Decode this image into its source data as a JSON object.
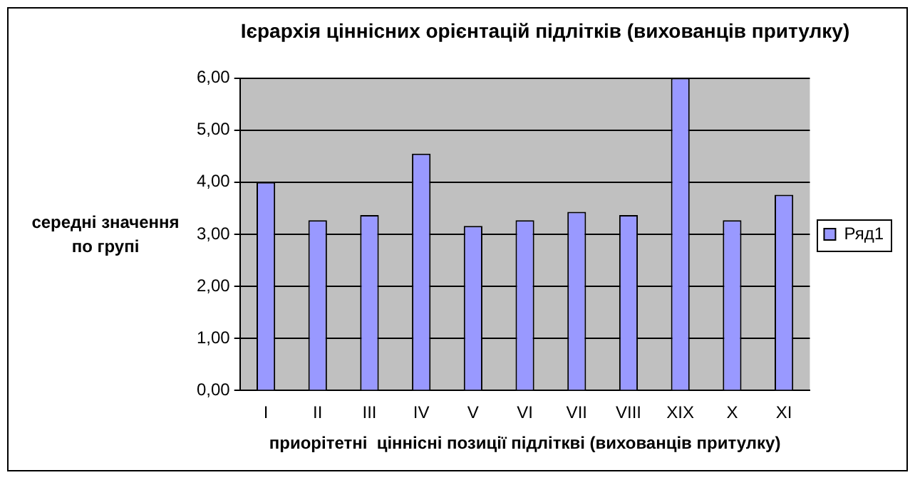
{
  "chart_data": {
    "type": "bar",
    "title": "Ієрархія ціннісних орієнтацій підлітків (вихованців притулку)",
    "xlabel": "приорітетні  ціннісні позиції підлітквi (вихованців притулку)",
    "ylabel": "середні значення по групі",
    "categories": [
      "I",
      "II",
      "III",
      "IV",
      "V",
      "VI",
      "VII",
      "VIII",
      "XIX",
      "X",
      "XI"
    ],
    "series": [
      {
        "name": "Ряд1",
        "color": "#9999ff",
        "values": [
          4.0,
          3.27,
          3.37,
          4.55,
          3.16,
          3.27,
          3.43,
          3.37,
          6.0,
          3.27,
          3.76
        ]
      }
    ],
    "ylim": [
      0,
      6
    ],
    "yticks": [
      {
        "value": 0,
        "label": "0,00"
      },
      {
        "value": 1,
        "label": "1,00"
      },
      {
        "value": 2,
        "label": "2,00"
      },
      {
        "value": 3,
        "label": "3,00"
      },
      {
        "value": 4,
        "label": "4,00"
      },
      {
        "value": 5,
        "label": "5,00"
      },
      {
        "value": 6,
        "label": "6,00"
      }
    ],
    "grid": "y",
    "legend": "right"
  }
}
